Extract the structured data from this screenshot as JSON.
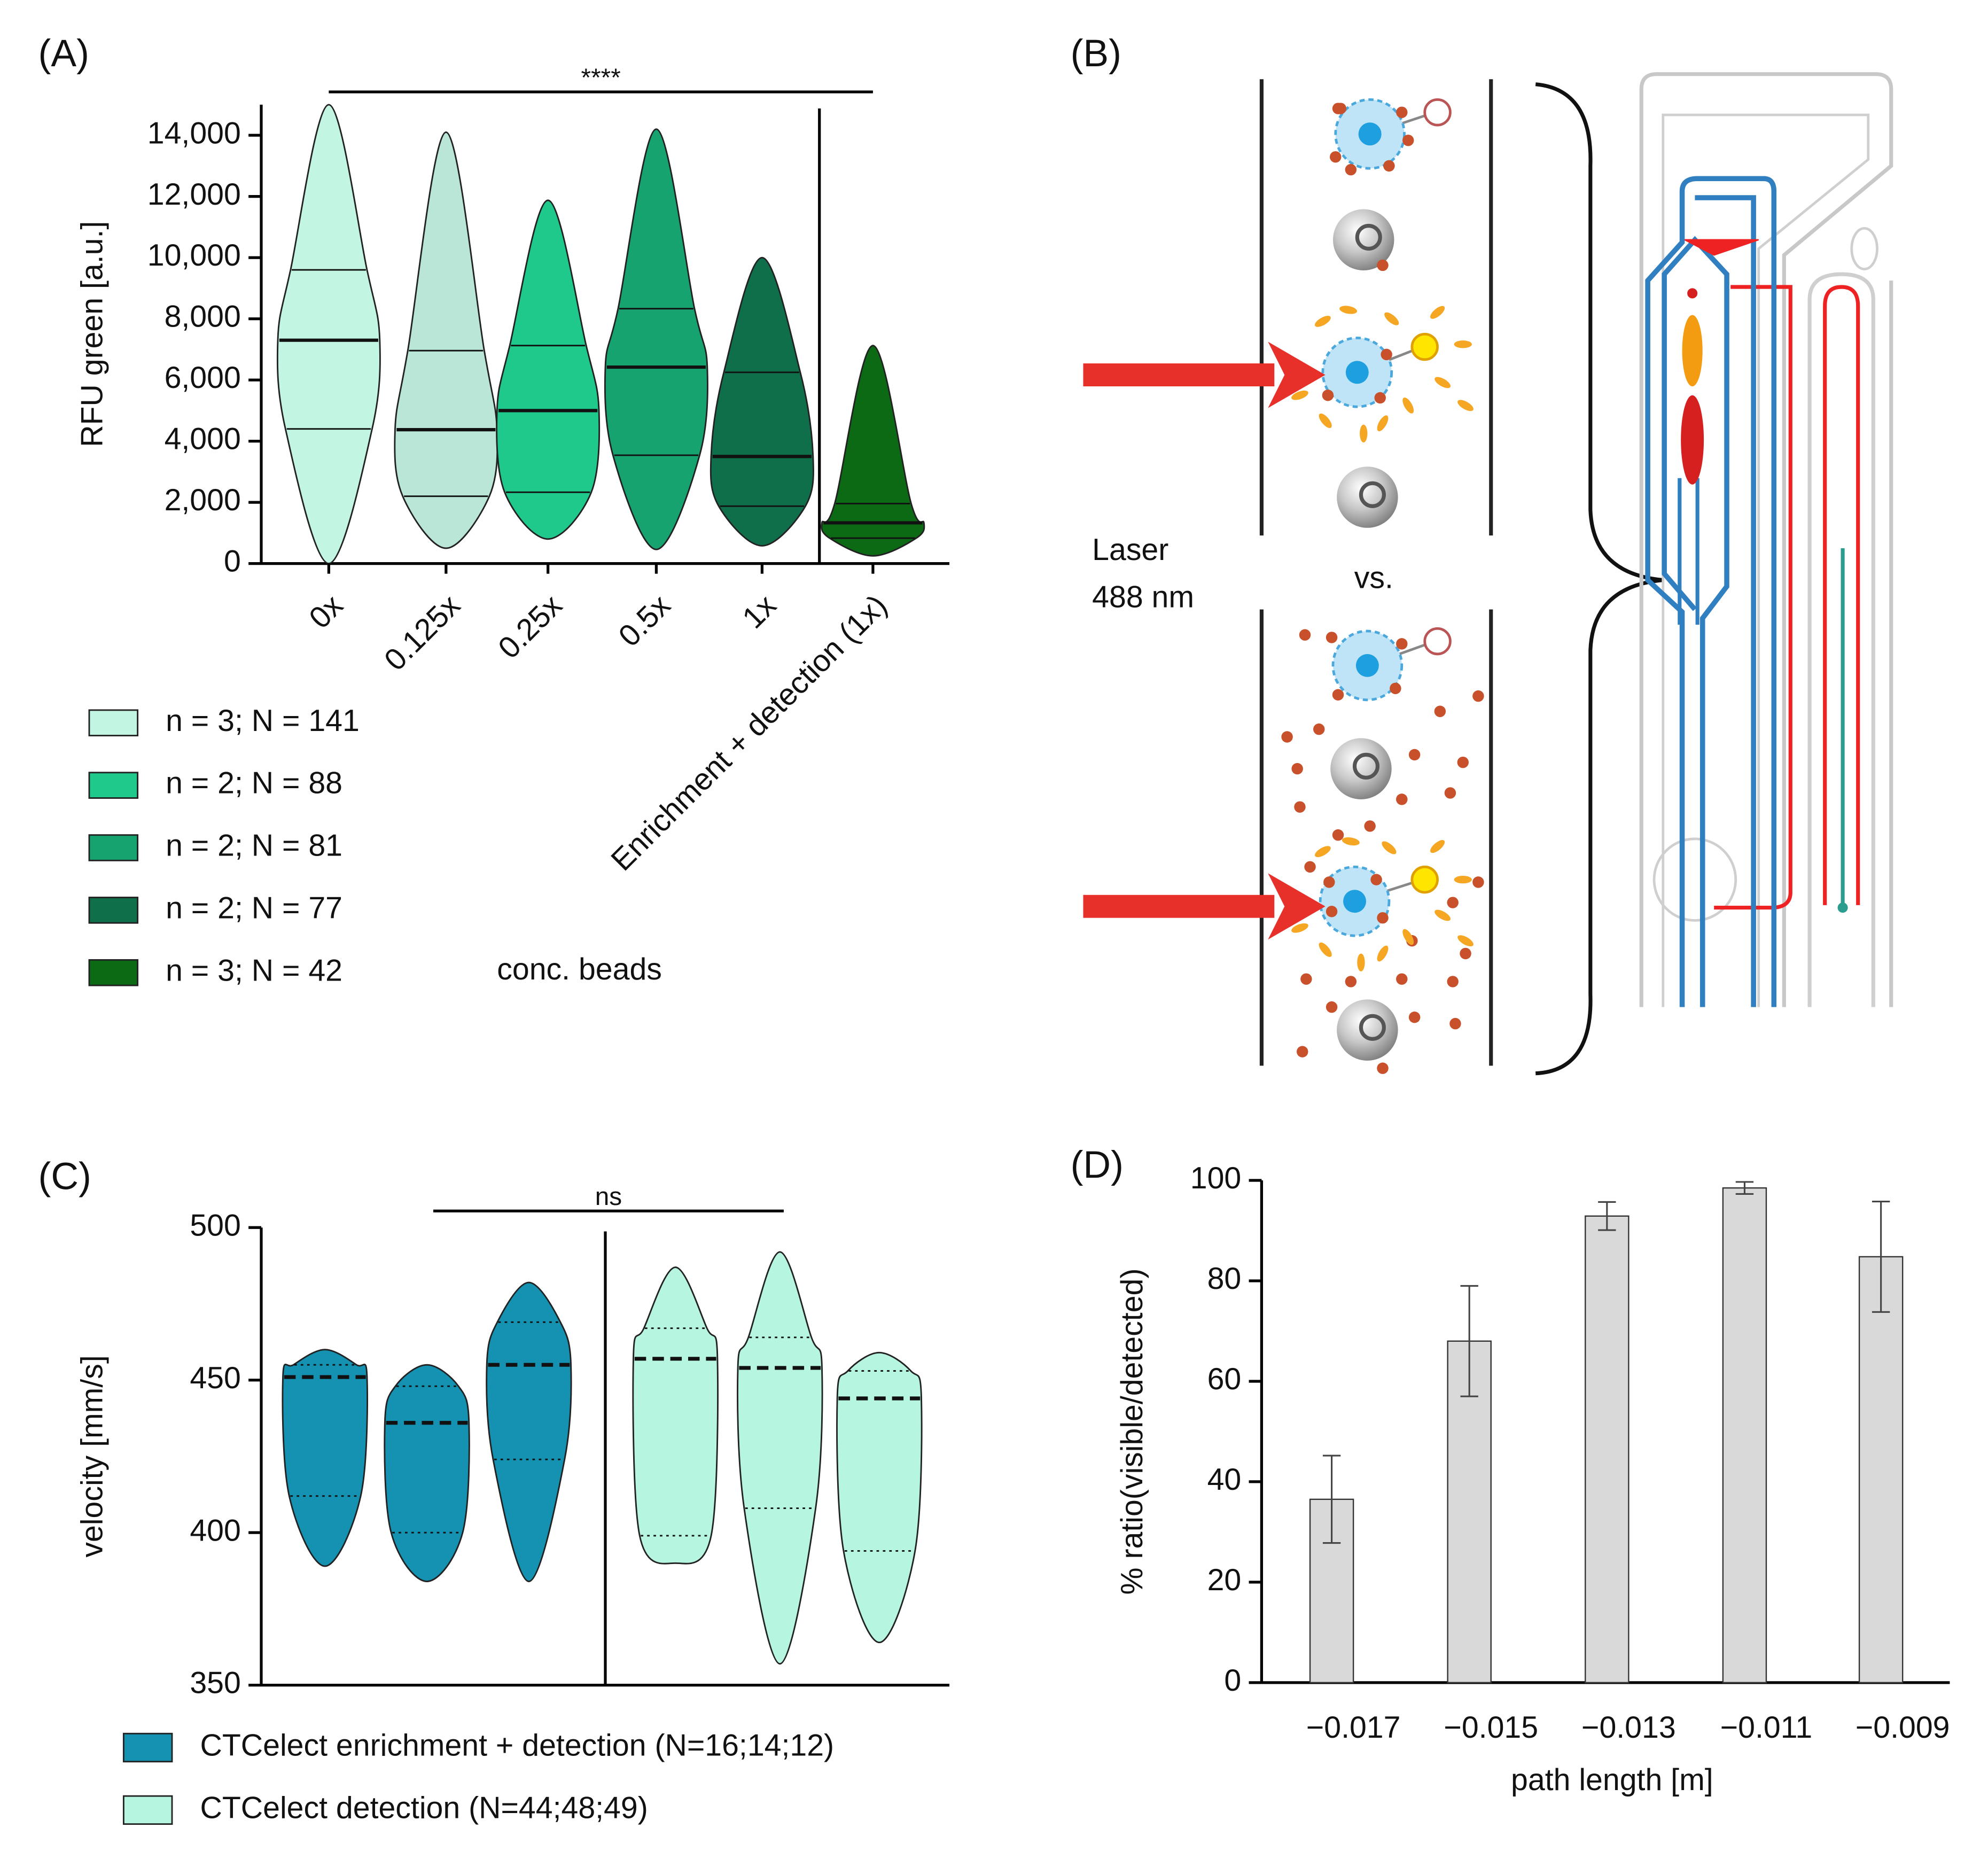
{
  "chart_data": [
    {
      "type": "violin",
      "panel": "(A)",
      "ylabel": "RFU green [a.u.]",
      "categories": [
        "0x",
        "0.125x",
        "0.25x",
        "0.5x",
        "1x",
        "Enrichment + detection (1x)"
      ],
      "colors": [
        "#c3f6e2",
        "#b9e6d7",
        "#1fc98b",
        "#17a370",
        "#0f6f4a",
        "#0c6a15"
      ],
      "max": [
        15000,
        14100,
        11875,
        14200,
        10000,
        7125
      ],
      "q3": [
        9600,
        6960,
        7125,
        8330,
        6250,
        1960
      ],
      "median": [
        7300,
        4375,
        5000,
        6420,
        3500,
        1330
      ],
      "q1": [
        4400,
        2200,
        2330,
        3540,
        1875,
        830
      ],
      "min": [
        0,
        500,
        800,
        460,
        580,
        250
      ],
      "ylim": [
        0,
        15000
      ],
      "yticks": [
        0,
        {
          "value": 2000,
          "label": "2,000"
        },
        {
          "value": 4000,
          "label": "4,000"
        },
        {
          "value": 6000,
          "label": "6,000"
        },
        {
          "value": 8000,
          "label": "8,000"
        },
        {
          "value": 10000,
          "label": "10,000"
        },
        {
          "value": 12000,
          "label": "12,000"
        },
        {
          "value": 14000,
          "label": "14,000"
        }
      ],
      "significance": "****",
      "legend_note": "conc. beads",
      "legend": [
        {
          "name": "n = 3; N = 141",
          "color": "#c3f6e2"
        },
        {
          "name": "n = 2; N = 88",
          "color": "#1fc98b"
        },
        {
          "name": "n = 2; N = 81",
          "color": "#17a370"
        },
        {
          "name": "n = 2; N = 77",
          "color": "#0f6f4a"
        },
        {
          "name": "n = 3; N = 42",
          "color": "#0c6a15"
        }
      ]
    },
    {
      "type": "violin",
      "panel": "(C)",
      "ylabel": "velocity [mm/s]",
      "significance": "ns",
      "ylim": [
        350,
        500
      ],
      "yticks": [
        350,
        400,
        450,
        500
      ],
      "series": [
        {
          "name": "CTCelect enrichment + detection (N=16;14;12)",
          "color": "#1591b1",
          "max": [
            460,
            455,
            482
          ],
          "q3": [
            455,
            448,
            469
          ],
          "median": [
            451,
            436,
            455
          ],
          "q1": [
            412,
            400,
            424
          ],
          "min": [
            389,
            384,
            384
          ]
        },
        {
          "name": "CTCelect detection (N=44;48;49)",
          "color": "#b6f5e0",
          "max": [
            487,
            492,
            459
          ],
          "q3": [
            467,
            464,
            453
          ],
          "median": [
            457,
            454,
            444
          ],
          "q1": [
            399,
            408,
            394
          ],
          "min": [
            390,
            357,
            364
          ]
        }
      ]
    },
    {
      "type": "bar",
      "panel": "(D)",
      "ylabel": "% ratio(visible/detected)",
      "xlabel": "path length [m]",
      "categories": [
        "−0.017",
        "−0.015",
        "−0.013",
        "−0.011",
        "−0.009"
      ],
      "values": [
        36.5,
        68,
        92.9,
        98.5,
        84.8
      ],
      "errors": [
        8.7,
        11,
        2.8,
        1.2,
        11
      ],
      "color": "#d9d9d9",
      "ylim": [
        0,
        100
      ],
      "yticks": [
        0,
        20,
        40,
        60,
        80,
        100
      ]
    }
  ],
  "diagram": {
    "panel": "(B)",
    "laser": [
      "Laser",
      "488 nm"
    ],
    "comparison": "vs."
  }
}
